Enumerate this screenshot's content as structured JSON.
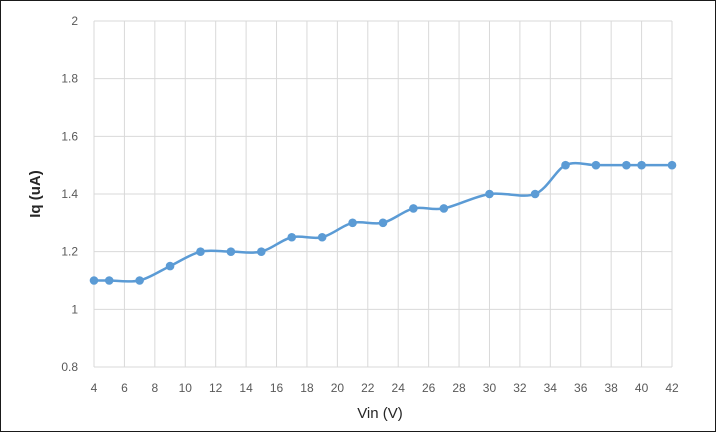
{
  "chart_data": {
    "type": "line",
    "title": "",
    "xlabel": "Vin (V)",
    "ylabel": "Iq (uA)",
    "xlim": [
      4,
      42
    ],
    "ylim": [
      0.8,
      2
    ],
    "x_ticks": [
      4,
      6,
      8,
      10,
      12,
      14,
      16,
      18,
      20,
      22,
      24,
      26,
      28,
      30,
      32,
      34,
      36,
      38,
      40,
      42
    ],
    "y_ticks": [
      0.8,
      1,
      1.2,
      1.4,
      1.6,
      1.8,
      2
    ],
    "grid": true,
    "legend": "none",
    "color": "#5b9bd5",
    "series": [
      {
        "x": [
          4,
          5,
          7,
          9,
          11,
          13,
          15,
          17,
          19,
          21,
          23,
          25,
          27,
          30,
          33,
          35,
          37,
          39,
          40,
          42
        ],
        "y": [
          1.1,
          1.1,
          1.1,
          1.15,
          1.2,
          1.2,
          1.2,
          1.25,
          1.25,
          1.3,
          1.3,
          1.35,
          1.35,
          1.4,
          1.4,
          1.5,
          1.5,
          1.5,
          1.5,
          1.5
        ]
      }
    ]
  }
}
